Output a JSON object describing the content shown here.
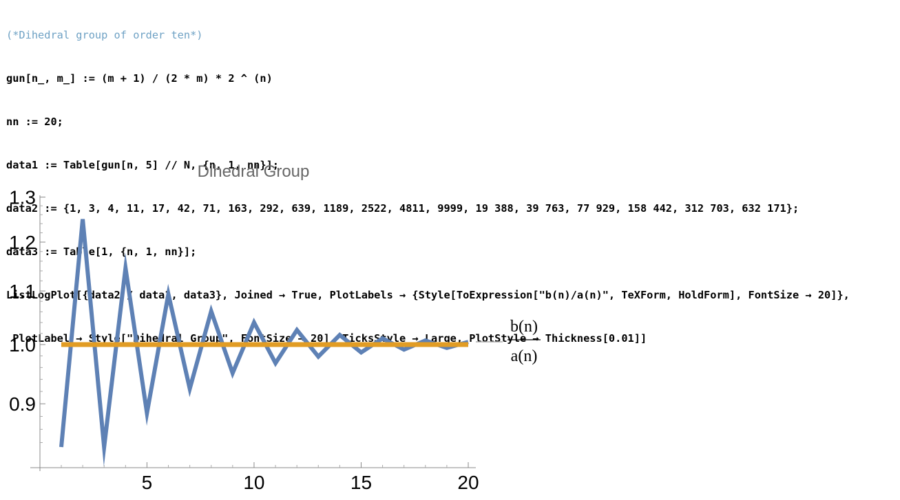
{
  "notebook": {
    "comment": "(*Dihedral group of order ten*)",
    "lines": [
      "gun[n_, m_] := (m + 1) / (2 * m) * 2 ^ (n)",
      "nn := 20;",
      "data1 := Table[gun[n, 5] // N, {n, 1, nn}];",
      "data2 := {1, 3, 4, 11, 17, 42, 71, 163, 292, 639, 1189, 2522, 4811, 9999, 19 388, 39 763, 77 929, 158 442, 312 703, 632 171};",
      "data3 := Table[1, {n, 1, nn}];",
      "ListLogPlot[{data2 / data1, data3}, Joined → True, PlotLabels → {Style[ToExpression[\"b(n)/a(n)\", TeXForm, HoldForm], FontSize → 20]},",
      " PlotLabel → Style[\"Dihedral Group\", FontSize → 20], TicksStyle → Large, PlotStyle → Thickness[0.01]]"
    ]
  },
  "chart_data": {
    "type": "line",
    "title": "Dihedral Group",
    "x": [
      1,
      2,
      3,
      4,
      5,
      6,
      7,
      8,
      9,
      10,
      11,
      12,
      13,
      14,
      15,
      16,
      17,
      18,
      19,
      20
    ],
    "series": [
      {
        "name": "b(n)/a(n)",
        "color": "#5e81b5",
        "values": [
          0.8333,
          1.25,
          0.8333,
          1.1458,
          0.8854,
          1.0938,
          0.9245,
          1.0612,
          0.9505,
          1.04,
          0.9675,
          1.0262,
          0.9788,
          1.0171,
          0.9862,
          1.0111,
          0.9911,
          1.0072,
          0.9942,
          1.0047
        ]
      },
      {
        "name": "",
        "color": "#e19c24",
        "values": [
          1,
          1,
          1,
          1,
          1,
          1,
          1,
          1,
          1,
          1,
          1,
          1,
          1,
          1,
          1,
          1,
          1,
          1,
          1,
          1
        ]
      }
    ],
    "log_scale_y": true,
    "ylim": [
      0.82,
      1.31
    ],
    "xlim": [
      0,
      20.4
    ],
    "x_ticks": [
      5,
      10,
      15,
      20
    ],
    "x_tick_labels": [
      "5",
      "10",
      "15",
      "20"
    ],
    "y_ticks": [
      0.9,
      1.0,
      1.1,
      1.2,
      1.3
    ],
    "y_tick_labels": [
      "0.9",
      "1.0",
      "1.1",
      "1.2",
      "1.3"
    ],
    "plot_label_numerator": "b(n)",
    "plot_label_denominator": "a(n)",
    "legend": "right",
    "grid": false
  }
}
